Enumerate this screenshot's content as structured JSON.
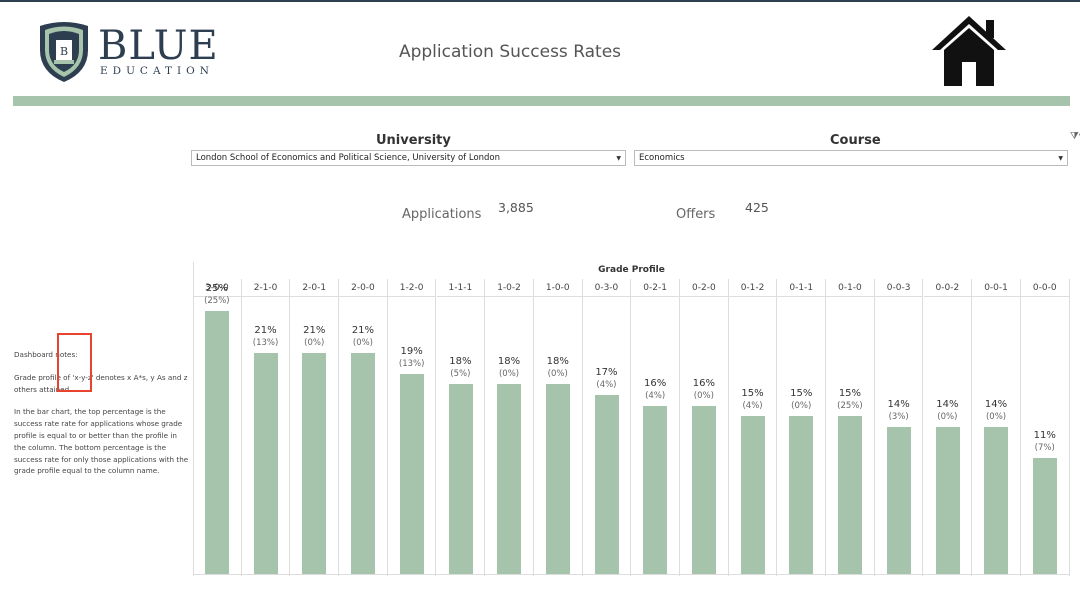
{
  "header": {
    "logo_word": "BLUE",
    "logo_sub": "EDUCATION",
    "logo_crest_letter": "B",
    "title": "Application Success Rates",
    "home_icon": "home-icon"
  },
  "filters": {
    "university": {
      "label": "University",
      "value": "London School of Economics and Political Science, University of London"
    },
    "course": {
      "label": "Course",
      "value": "Economics"
    },
    "filter_icon": "filter-icon"
  },
  "kpis": {
    "applications_label": "Applications",
    "applications_value": "3,885",
    "offers_label": "Offers",
    "offers_value": "425"
  },
  "notes": {
    "heading": "Dashboard notes:",
    "p1": "Grade profile of 'x-y-z' denotes x A*s, y As and z others attained.",
    "p2": "In the bar chart, the top percentage is the success rate rate for applications whose grade profile is equal to or better than the profile in the column. The bottom percentage is the success rate for only those applications with the grade profile equal to the column name."
  },
  "colors": {
    "accent_green": "#a6c3ab",
    "navy": "#2d3e50",
    "highlight_red": "#e8432e"
  },
  "chart_data": {
    "type": "bar",
    "title": "Grade Profile",
    "categories": [
      "3-0-0",
      "2-1-0",
      "2-0-1",
      "2-0-0",
      "1-2-0",
      "1-1-1",
      "1-0-2",
      "1-0-0",
      "0-3-0",
      "0-2-1",
      "0-2-0",
      "0-1-2",
      "0-1-1",
      "0-1-0",
      "0-0-3",
      "0-0-2",
      "0-0-1",
      "0-0-0"
    ],
    "series": [
      {
        "values": [
          25,
          21,
          21,
          21,
          19,
          18,
          18,
          18,
          17,
          16,
          16,
          15,
          15,
          15,
          14,
          14,
          14,
          11
        ]
      }
    ],
    "top_labels": [
      "25%",
      "21%",
      "21%",
      "21%",
      "19%",
      "18%",
      "18%",
      "18%",
      "17%",
      "16%",
      "16%",
      "15%",
      "15%",
      "15%",
      "14%",
      "14%",
      "14%",
      "11%"
    ],
    "sub_labels": [
      "(25%)",
      "(13%)",
      "(0%)",
      "(0%)",
      "(13%)",
      "(5%)",
      "(0%)",
      "(0%)",
      "(4%)",
      "(4%)",
      "(0%)",
      "(4%)",
      "(0%)",
      "(25%)",
      "(3%)",
      "(0%)",
      "(0%)",
      "(7%)"
    ],
    "highlighted_category": "2-1-0",
    "ylim": [
      0,
      28
    ],
    "grid": false
  }
}
